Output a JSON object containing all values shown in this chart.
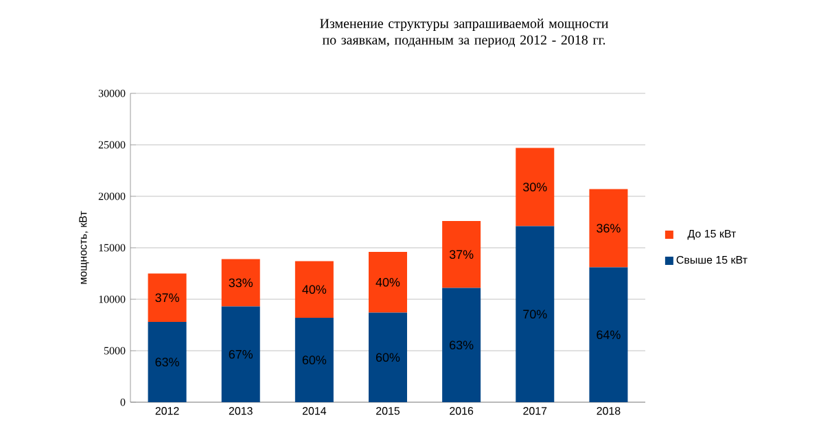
{
  "chart_data": {
    "type": "bar",
    "title": "Изменение структуры запрашиваемой мощности по заявкам, поданным  за период 2012 - 2018 гг.",
    "ylabel": "мощность, кВт",
    "categories": [
      "2012",
      "2013",
      "2014",
      "2015",
      "2016",
      "2017",
      "2018"
    ],
    "stacked": true,
    "series": [
      {
        "name": "Свыше 15 кВт",
        "color": "#004586",
        "values": [
          7800,
          9300,
          8200,
          8700,
          11100,
          17100,
          13100
        ]
      },
      {
        "name": "До 15 кВт",
        "color": "#ff420e",
        "values": [
          4700,
          4600,
          5500,
          5900,
          6500,
          7600,
          7600
        ]
      }
    ],
    "annotations": [
      "63%",
      "67%",
      "60%",
      "60%",
      "63%",
      "70%",
      "64%",
      "37%",
      "33%",
      "40%",
      "40%",
      "37%",
      "30%",
      "36%"
    ],
    "ylim": [
      0,
      30000
    ],
    "yticks": [
      0,
      5000,
      10000,
      15000,
      20000,
      25000,
      30000
    ],
    "grid": "y",
    "legend": "right"
  }
}
